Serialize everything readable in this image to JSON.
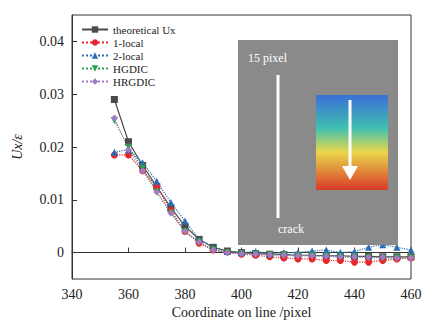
{
  "chart_data": {
    "type": "line",
    "x_label": "Coordinate on line /pixel",
    "y_label": "Ux/ε",
    "xlim": [
      340,
      460
    ],
    "xticks": [
      340,
      360,
      380,
      400,
      420,
      440,
      460
    ],
    "ylim": [
      -0.005,
      0.045
    ],
    "yticks": [
      0,
      0.01,
      0.02,
      0.03,
      0.04
    ],
    "grid": false,
    "legend": "upper left",
    "annotations": [
      "15 pixel",
      "crack"
    ],
    "x": [
      355,
      360,
      365,
      370,
      375,
      380,
      385,
      390,
      395,
      400,
      405,
      410,
      415,
      420,
      425,
      430,
      435,
      440,
      445,
      450,
      455,
      460
    ],
    "series": [
      {
        "name": "theoretical Ux",
        "color": "#4a4a4a",
        "marker": "square",
        "line_style": "solid",
        "values": [
          0.029,
          0.021,
          0.0165,
          0.0125,
          0.0085,
          0.005,
          0.0025,
          0.001,
          0.0003,
          0,
          -0.0002,
          -0.0003,
          -0.0004,
          -0.0005,
          -0.0005,
          -0.0006,
          -0.0006,
          -0.0007,
          -0.0007,
          -0.0008,
          -0.0008,
          -0.0008
        ]
      },
      {
        "name": "1-local",
        "color": "#e8262b",
        "marker": "circle",
        "line_style": "dotted",
        "values": [
          0.0185,
          0.0185,
          0.0155,
          0.0125,
          0.008,
          0.004,
          0.0018,
          0.0005,
          0.0001,
          -0.0003,
          -0.0005,
          -0.0008,
          -0.001,
          -0.0012,
          -0.0012,
          -0.0015,
          -0.0015,
          -0.0018,
          -0.0018,
          -0.0015,
          -0.0012,
          -0.001
        ]
      },
      {
        "name": "2-local",
        "color": "#2a6db5",
        "marker": "triangle",
        "line_style": "dotted",
        "values": [
          0.019,
          0.0195,
          0.017,
          0.0135,
          0.0095,
          0.006,
          0.0025,
          0.001,
          0.0002,
          0,
          0.0002,
          -0.0002,
          0,
          0,
          0.0003,
          0.0005,
          0,
          0.0002,
          0.001,
          0.0015,
          0.001,
          0.0005
        ]
      },
      {
        "name": "HGDIC",
        "color": "#2ca048",
        "marker": "triangle-down",
        "line_style": "dotted",
        "values": [
          0.025,
          0.02,
          0.016,
          0.0115,
          0.0075,
          0.004,
          0.002,
          0.0005,
          0,
          -0.0002,
          -0.0003,
          -0.0004,
          -0.0005,
          -0.0006,
          -0.0006,
          -0.0007,
          -0.0008,
          -0.0008,
          -0.0009,
          -0.001,
          -0.001,
          -0.001
        ]
      },
      {
        "name": "HRGDIC",
        "color": "#a07cc5",
        "marker": "diamond",
        "line_style": "dotted",
        "values": [
          0.0255,
          0.0195,
          0.0155,
          0.0115,
          0.0075,
          0.004,
          0.002,
          0.0005,
          0,
          -0.0002,
          -0.0003,
          -0.0004,
          -0.0005,
          -0.0006,
          -0.0006,
          -0.0007,
          -0.0008,
          -0.0008,
          -0.0009,
          -0.0009,
          -0.001,
          -0.001
        ]
      }
    ]
  }
}
